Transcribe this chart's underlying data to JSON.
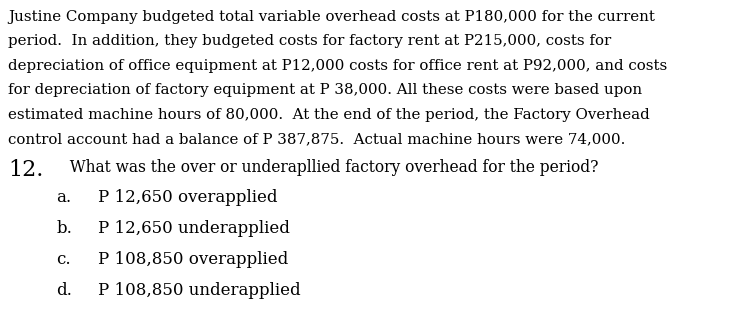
{
  "background_color": "#ffffff",
  "paragraph_lines": [
    "Justine Company budgeted total variable overhead costs at P180,000 for the current",
    "period.  In addition, they budgeted costs for factory rent at P215,000, costs for",
    "depreciation of office equipment at P12,000 costs for office rent at P92,000, and costs",
    "for depreciation of factory equipment at P 38,000. All these costs were based upon",
    "estimated machine hours of 80,000.  At the end of the period, the Factory Overhead",
    "control account had a balance of P 387,875.  Actual machine hours were 74,000."
  ],
  "question_number": "12.",
  "question_text": "  What was the over or underapllied factory overhead for the period?",
  "choices": [
    {
      "letter": "a.",
      "text": "P 12,650 overapplied"
    },
    {
      "letter": "b.",
      "text": "P 12,650 underapplied"
    },
    {
      "letter": "c.",
      "text": "P 108,850 overapplied"
    },
    {
      "letter": "d.",
      "text": "P 108,850 underapplied"
    }
  ],
  "font_size_paragraph": 10.8,
  "font_size_question_number": 16.0,
  "font_size_question": 11.2,
  "font_size_choices": 12.0,
  "font_family": "serif",
  "text_color": "#000000"
}
